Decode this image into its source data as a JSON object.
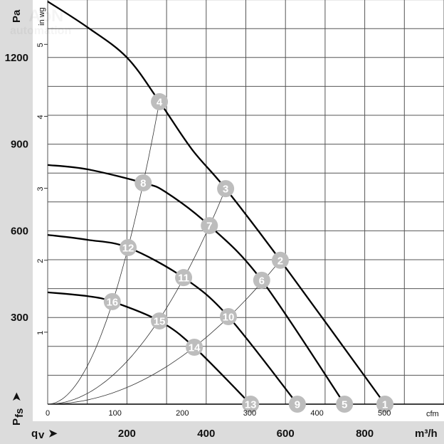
{
  "chart_data": {
    "type": "line",
    "title": "",
    "xlabel": "qv",
    "xunit_primary": "m³/h",
    "xunit_secondary": "cfm",
    "ylabel": "Pfs",
    "yunit_primary": "Pa",
    "yunit_secondary": "in wg",
    "xlim_m3h": [
      0,
      1000
    ],
    "ylim_pa": [
      0,
      1400
    ],
    "grid": true,
    "x_ticks_m3h": [
      "200",
      "400",
      "600",
      "800"
    ],
    "x_ticks_cfm": [
      "0",
      "100",
      "200",
      "300",
      "400",
      "500"
    ],
    "y_ticks_pa": [
      "300",
      "600",
      "900",
      "1200"
    ],
    "y_ticks_inwg": [
      "1",
      "2",
      "3",
      "4",
      "5"
    ],
    "series": [
      {
        "points": [
          [
            0,
            1394
          ],
          [
            100,
            1305
          ],
          [
            200,
            1200
          ],
          [
            282,
            1047
          ],
          [
            364,
            882
          ],
          [
            449,
            746
          ],
          [
            587,
            498
          ],
          [
            851,
            0
          ]
        ],
        "markers": [
          {
            "label": "4",
            "x": 282,
            "y": 1047
          },
          {
            "label": "3",
            "x": 449,
            "y": 746
          },
          {
            "label": "2",
            "x": 587,
            "y": 498
          },
          {
            "label": "1",
            "x": 851,
            "y": 0
          }
        ]
      },
      {
        "points": [
          [
            0,
            828
          ],
          [
            100,
            813
          ],
          [
            241,
            766
          ],
          [
            298,
            734
          ],
          [
            408,
            618
          ],
          [
            540,
            429
          ],
          [
            749,
            0
          ]
        ],
        "markers": [
          {
            "label": "8",
            "x": 241,
            "y": 766
          },
          {
            "label": "7",
            "x": 408,
            "y": 618
          },
          {
            "label": "6",
            "x": 540,
            "y": 429
          },
          {
            "label": "5",
            "x": 749,
            "y": 0
          }
        ]
      },
      {
        "points": [
          [
            0,
            586
          ],
          [
            100,
            569
          ],
          [
            203,
            542
          ],
          [
            343,
            438
          ],
          [
            456,
            303
          ],
          [
            630,
            0
          ]
        ],
        "markers": [
          {
            "label": "12",
            "x": 203,
            "y": 542
          },
          {
            "label": "11",
            "x": 343,
            "y": 438
          },
          {
            "label": "10",
            "x": 456,
            "y": 303
          },
          {
            "label": "9",
            "x": 630,
            "y": 0
          }
        ]
      },
      {
        "points": [
          [
            0,
            387
          ],
          [
            100,
            374
          ],
          [
            163,
            355
          ],
          [
            282,
            288
          ],
          [
            370,
            197
          ],
          [
            512,
            0
          ]
        ],
        "markers": [
          {
            "label": "16",
            "x": 163,
            "y": 355
          },
          {
            "label": "15",
            "x": 282,
            "y": 288
          },
          {
            "label": "14",
            "x": 370,
            "y": 197
          },
          {
            "label": "13",
            "x": 512,
            "y": 0
          }
        ]
      }
    ],
    "system_curves": [
      {
        "through": [
          "16",
          "12",
          "8",
          "4"
        ],
        "end": [
          282,
          1047
        ]
      },
      {
        "through": [
          "15",
          "11",
          "7",
          "3"
        ],
        "end": [
          449,
          746
        ]
      },
      {
        "through": [
          "14",
          "10",
          "6",
          "2"
        ],
        "end": [
          587,
          498
        ]
      }
    ],
    "colors": {
      "curve": "#000000",
      "marker": "#bdbdbd",
      "marker_text": "#ffffff",
      "band": "#dcdcdc"
    }
  },
  "labels": {
    "pa": "Pa",
    "in_wg": "in wg",
    "cfm": "cfm",
    "m3h": "m³/h",
    "pfs_main": "P",
    "pfs_sub": "fs",
    "qv_main": "q",
    "qv_sub": "v",
    "arrow": "➤"
  },
  "watermark": {
    "line1": "AbN",
    "line2": "automation"
  }
}
